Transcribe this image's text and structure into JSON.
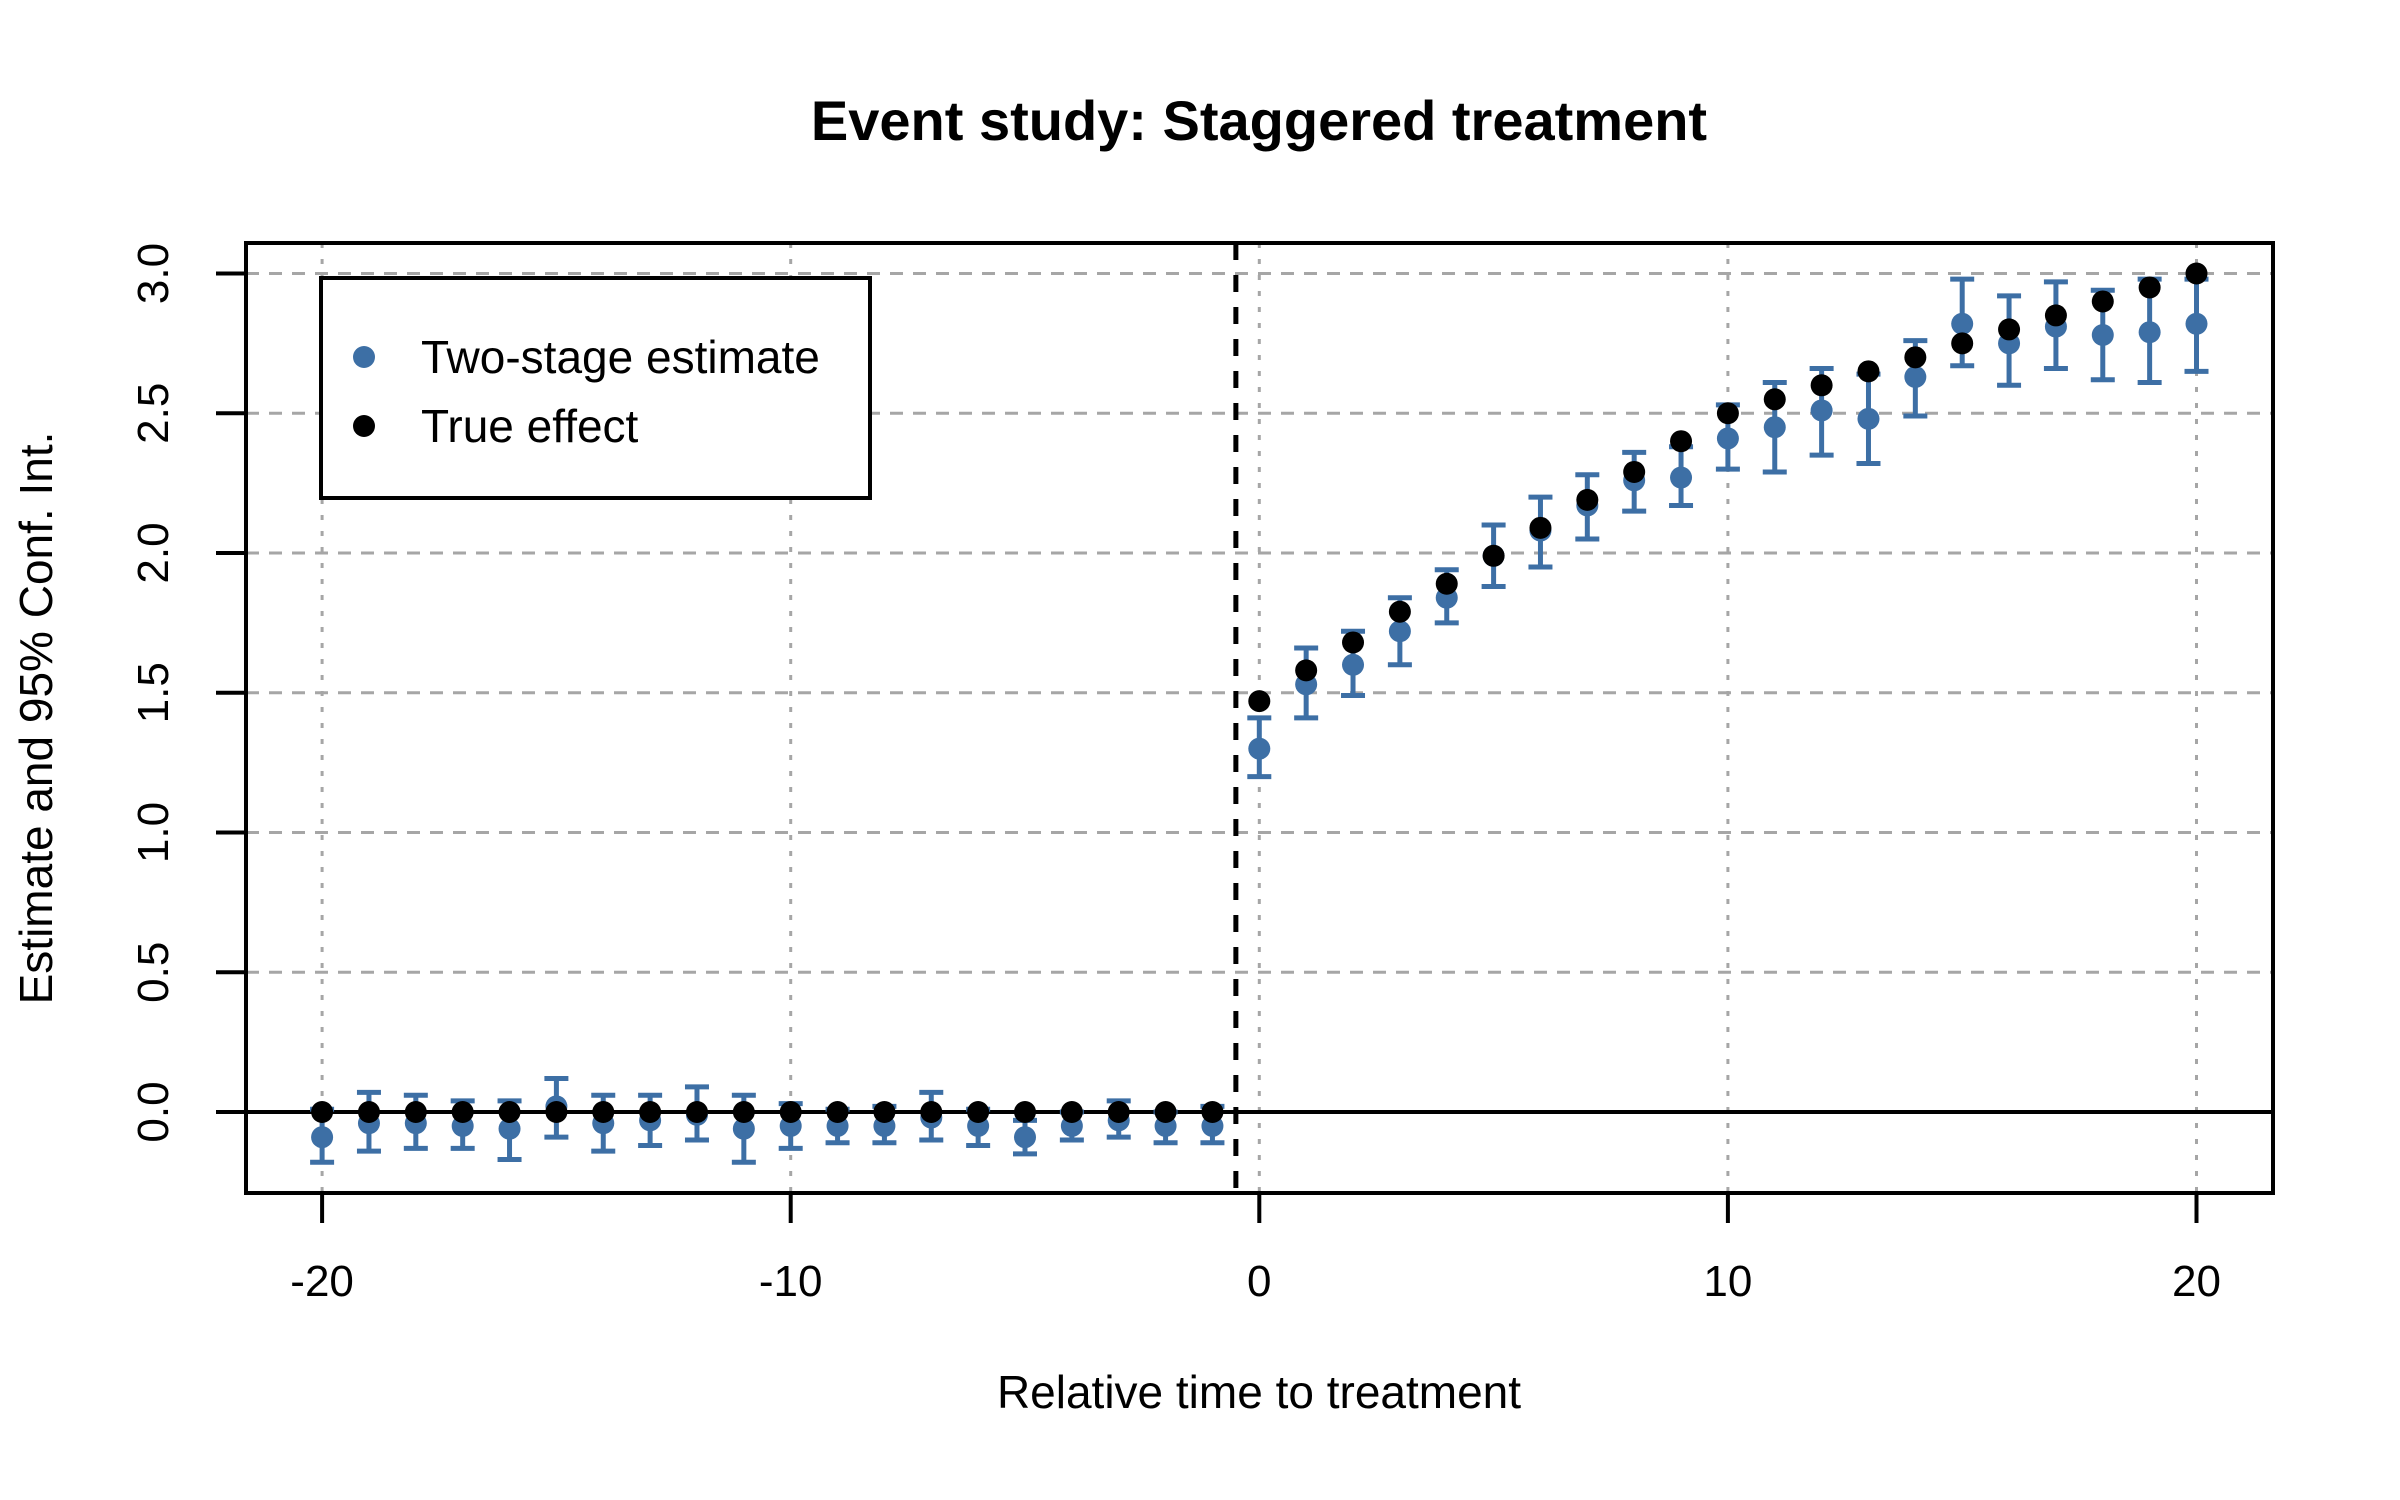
{
  "chart_data": {
    "type": "scatter",
    "title": "Event study: Staggered treatment",
    "xlabel": "Relative time to treatment",
    "ylabel": "Estimate and 95% Conf. Int.",
    "x_tick_values": [
      -20,
      -10,
      0,
      10,
      20
    ],
    "x_tick_labels": [
      "-20",
      "-10",
      "0",
      "10",
      "20"
    ],
    "y_tick_values": [
      0,
      0.5,
      1,
      1.5,
      2,
      2.5,
      3
    ],
    "y_tick_labels": [
      "0.0",
      "0.5",
      "1.0",
      "1.5",
      "2.0",
      "2.5",
      "3.0"
    ],
    "xlim": [
      -21.6,
      21.6
    ],
    "ylim": [
      -0.29,
      3.11
    ],
    "grid": true,
    "reference_lines": {
      "horizontal_solid_y": 0,
      "vertical_dashed_x": -0.5
    },
    "colors": {
      "two_stage": "#3D6FA5",
      "true_effect": "#000000",
      "grid": "#A6A6A6"
    },
    "legend": {
      "position": "top-left",
      "items": [
        {
          "label": "Two-stage estimate",
          "color": "#3D6FA5"
        },
        {
          "label": "True effect",
          "color": "#000000"
        }
      ]
    },
    "series": [
      {
        "name": "Two-stage estimate",
        "type": "scatter-with-error-bars",
        "color": "#3D6FA5",
        "point_format": [
          "t",
          "estimate",
          "ci_low",
          "ci_high"
        ],
        "points": [
          [
            -20,
            -0.09,
            -0.18,
            0.01
          ],
          [
            -19,
            -0.04,
            -0.14,
            0.07
          ],
          [
            -18,
            -0.04,
            -0.13,
            0.06
          ],
          [
            -17,
            -0.05,
            -0.13,
            0.04
          ],
          [
            -16,
            -0.06,
            -0.17,
            0.04
          ],
          [
            -15,
            0.02,
            -0.09,
            0.12
          ],
          [
            -14,
            -0.04,
            -0.14,
            0.06
          ],
          [
            -13,
            -0.03,
            -0.12,
            0.06
          ],
          [
            -12,
            -0.01,
            -0.1,
            0.09
          ],
          [
            -11,
            -0.06,
            -0.18,
            0.06
          ],
          [
            -10,
            -0.05,
            -0.13,
            0.03
          ],
          [
            -9,
            -0.05,
            -0.11,
            0.01
          ],
          [
            -8,
            -0.05,
            -0.11,
            0.02
          ],
          [
            -7,
            -0.02,
            -0.1,
            0.07
          ],
          [
            -6,
            -0.05,
            -0.12,
            0.01
          ],
          [
            -5,
            -0.09,
            -0.15,
            -0.03
          ],
          [
            -4,
            -0.05,
            -0.1,
            0.0
          ],
          [
            -3,
            -0.03,
            -0.09,
            0.04
          ],
          [
            -2,
            -0.05,
            -0.11,
            0.0
          ],
          [
            -1,
            -0.05,
            -0.11,
            0.02
          ],
          [
            0,
            1.3,
            1.2,
            1.41
          ],
          [
            1,
            1.53,
            1.41,
            1.66
          ],
          [
            2,
            1.6,
            1.49,
            1.72
          ],
          [
            3,
            1.72,
            1.6,
            1.84
          ],
          [
            4,
            1.84,
            1.75,
            1.94
          ],
          [
            5,
            1.99,
            1.88,
            2.1
          ],
          [
            6,
            2.08,
            1.95,
            2.2
          ],
          [
            7,
            2.17,
            2.05,
            2.28
          ],
          [
            8,
            2.26,
            2.15,
            2.36
          ],
          [
            9,
            2.27,
            2.17,
            2.38
          ],
          [
            10,
            2.41,
            2.3,
            2.53
          ],
          [
            11,
            2.45,
            2.29,
            2.61
          ],
          [
            12,
            2.51,
            2.35,
            2.66
          ],
          [
            13,
            2.48,
            2.32,
            2.64
          ],
          [
            14,
            2.63,
            2.49,
            2.76
          ],
          [
            15,
            2.82,
            2.67,
            2.98
          ],
          [
            16,
            2.75,
            2.6,
            2.92
          ],
          [
            17,
            2.81,
            2.66,
            2.97
          ],
          [
            18,
            2.78,
            2.62,
            2.94
          ],
          [
            19,
            2.79,
            2.61,
            2.98
          ],
          [
            20,
            2.82,
            2.65,
            2.98
          ]
        ]
      },
      {
        "name": "True effect",
        "type": "scatter",
        "color": "#000000",
        "point_format": [
          "t",
          "value"
        ],
        "points": [
          [
            -20,
            0
          ],
          [
            -19,
            0
          ],
          [
            -18,
            0
          ],
          [
            -17,
            0
          ],
          [
            -16,
            0
          ],
          [
            -15,
            0
          ],
          [
            -14,
            0
          ],
          [
            -13,
            0
          ],
          [
            -12,
            0
          ],
          [
            -11,
            0
          ],
          [
            -10,
            0
          ],
          [
            -9,
            0
          ],
          [
            -8,
            0
          ],
          [
            -7,
            0
          ],
          [
            -6,
            0
          ],
          [
            -5,
            0
          ],
          [
            -4,
            0
          ],
          [
            -3,
            0
          ],
          [
            -2,
            0
          ],
          [
            -1,
            0
          ],
          [
            0,
            1.47
          ],
          [
            1,
            1.58
          ],
          [
            2,
            1.68
          ],
          [
            3,
            1.79
          ],
          [
            4,
            1.89
          ],
          [
            5,
            1.99
          ],
          [
            6,
            2.09
          ],
          [
            7,
            2.19
          ],
          [
            8,
            2.29
          ],
          [
            9,
            2.4
          ],
          [
            10,
            2.5
          ],
          [
            11,
            2.55
          ],
          [
            12,
            2.6
          ],
          [
            13,
            2.65
          ],
          [
            14,
            2.7
          ],
          [
            15,
            2.75
          ],
          [
            16,
            2.8
          ],
          [
            17,
            2.85
          ],
          [
            18,
            2.9
          ],
          [
            19,
            2.95
          ],
          [
            20,
            3.0
          ]
        ]
      }
    ]
  }
}
